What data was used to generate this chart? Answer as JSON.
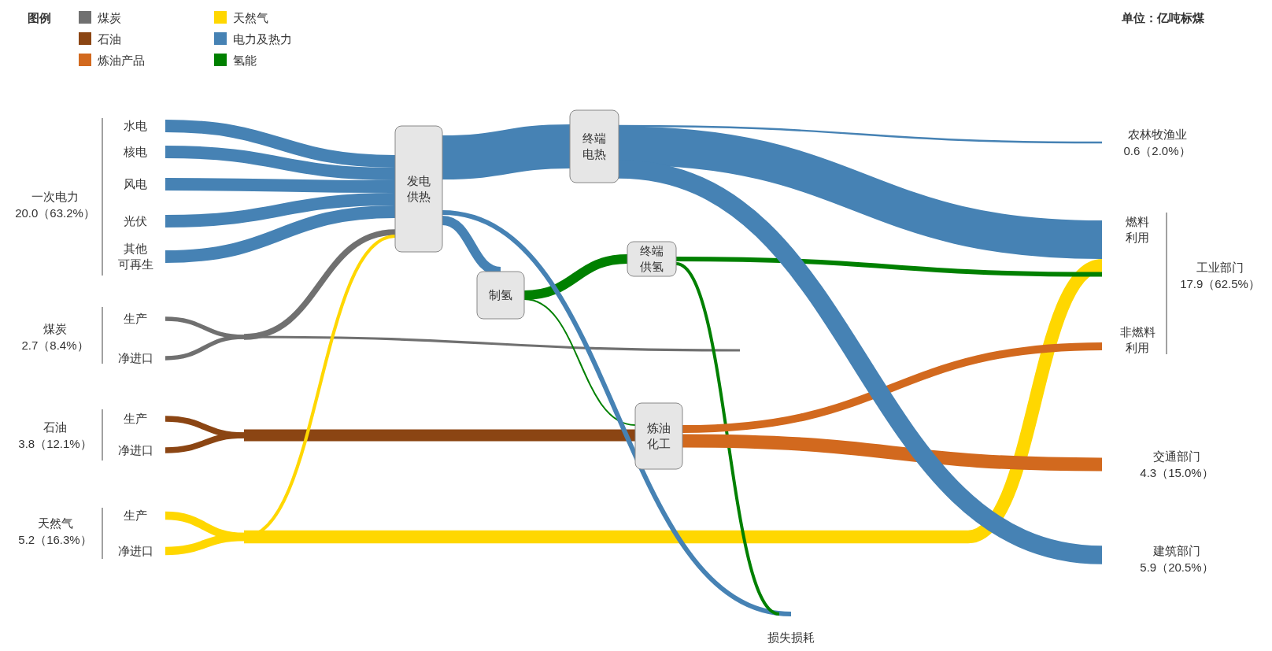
{
  "chart_data": {
    "type": "other",
    "legend_title": "图例",
    "legend": "top left",
    "series": [
      {
        "name": "煤炭",
        "color": "#707070",
        "values": [
          null,
          null,
          null,
          null,
          null,
          null,
          null,
          null
        ]
      },
      {
        "name": "石油",
        "color": "#8b4513",
        "values": [
          null,
          null,
          null,
          null,
          null,
          null,
          null,
          null
        ]
      },
      {
        "name": "炼油产品",
        "color": "#d2691e",
        "values": [
          null,
          null,
          null,
          null,
          null,
          null,
          null,
          null
        ]
      },
      {
        "name": "天然气",
        "color": "#ffd700",
        "values": [
          null,
          null,
          null,
          null,
          null,
          null,
          null,
          null
        ]
      },
      {
        "name": "电力及热力",
        "color": "#4682b4",
        "values": [
          null,
          null,
          null,
          null,
          null,
          null,
          null,
          null
        ]
      },
      {
        "name": "氢能",
        "color": "#008000",
        "values": [
          null,
          null,
          null,
          null,
          null,
          null,
          null,
          null
        ]
      }
    ],
    "categories": [
      "一次电力",
      "煤炭",
      "石油",
      "天然气",
      "农林牧渔业",
      "工业部门",
      "交通部门",
      "建筑部门"
    ],
    "values": [
      20.0,
      2.7,
      3.8,
      5.2,
      0.6,
      17.9,
      4.3,
      5.9
    ],
    "value_labels": [
      "20.0（63.2%）",
      "2.7（8.4%）",
      "3.8（12.1%）",
      "5.2（16.3%）",
      "0.6（2.0%）",
      "17.9（62.5%）",
      "4.3（15.0%）",
      "5.9（20.5%）"
    ],
    "annotations": [
      "单位：亿吨标煤",
      "水电",
      "核电",
      "风电",
      "光伏",
      "其他可再生",
      "生产",
      "净进口",
      "生产",
      "净进口",
      "生产",
      "净进口",
      "发电供热",
      "终端电热",
      "制氢",
      "终端供氢",
      "炼油化工",
      "损失损耗",
      "燃料利用",
      "非燃料利用"
    ]
  }
}
